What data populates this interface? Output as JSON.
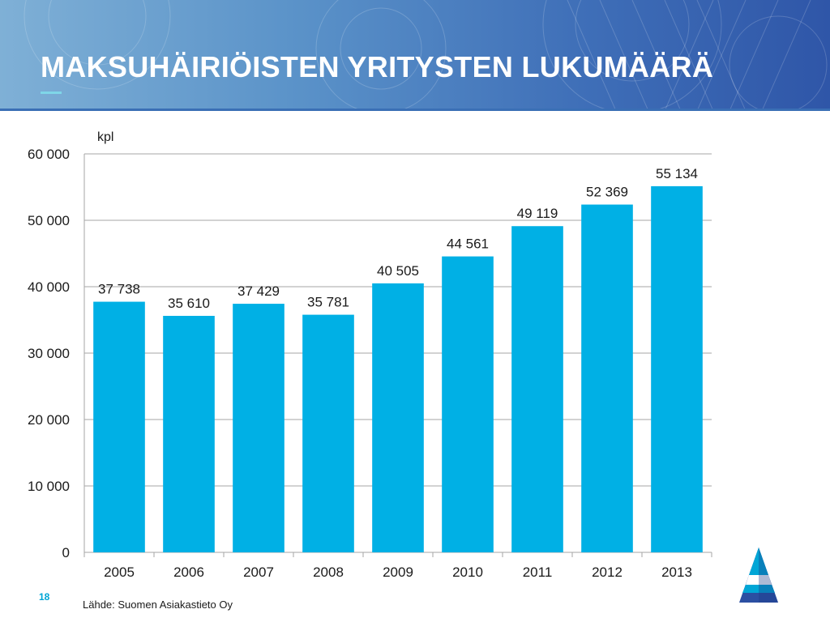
{
  "slide": {
    "title": "MAKSUHÄIRIÖISTEN YRITYSTEN LUKUMÄÄRÄ",
    "page_number": "18",
    "source": "Lähde: Suomen Asiakastieto Oy"
  },
  "colors": {
    "bar": "#00b0e5",
    "header_start": "#7fb0d6",
    "header_end": "#2f56a8",
    "accent": "#00a6d6"
  },
  "chart_data": {
    "type": "bar",
    "unit_label": "kpl",
    "categories": [
      "2005",
      "2006",
      "2007",
      "2008",
      "2009",
      "2010",
      "2011",
      "2012",
      "2013"
    ],
    "values": [
      37738,
      35610,
      37429,
      35781,
      40505,
      44561,
      49119,
      52369,
      55134
    ],
    "value_labels": [
      "37 738",
      "35 610",
      "37 429",
      "35 781",
      "40 505",
      "44 561",
      "49 119",
      "52 369",
      "55 134"
    ],
    "y_ticks": [
      0,
      10000,
      20000,
      30000,
      40000,
      50000,
      60000
    ],
    "y_tick_labels": [
      "0",
      "10 000",
      "20 000",
      "30 000",
      "40 000",
      "50 000",
      "60 000"
    ],
    "ylim": [
      0,
      60000
    ],
    "grid": true
  }
}
